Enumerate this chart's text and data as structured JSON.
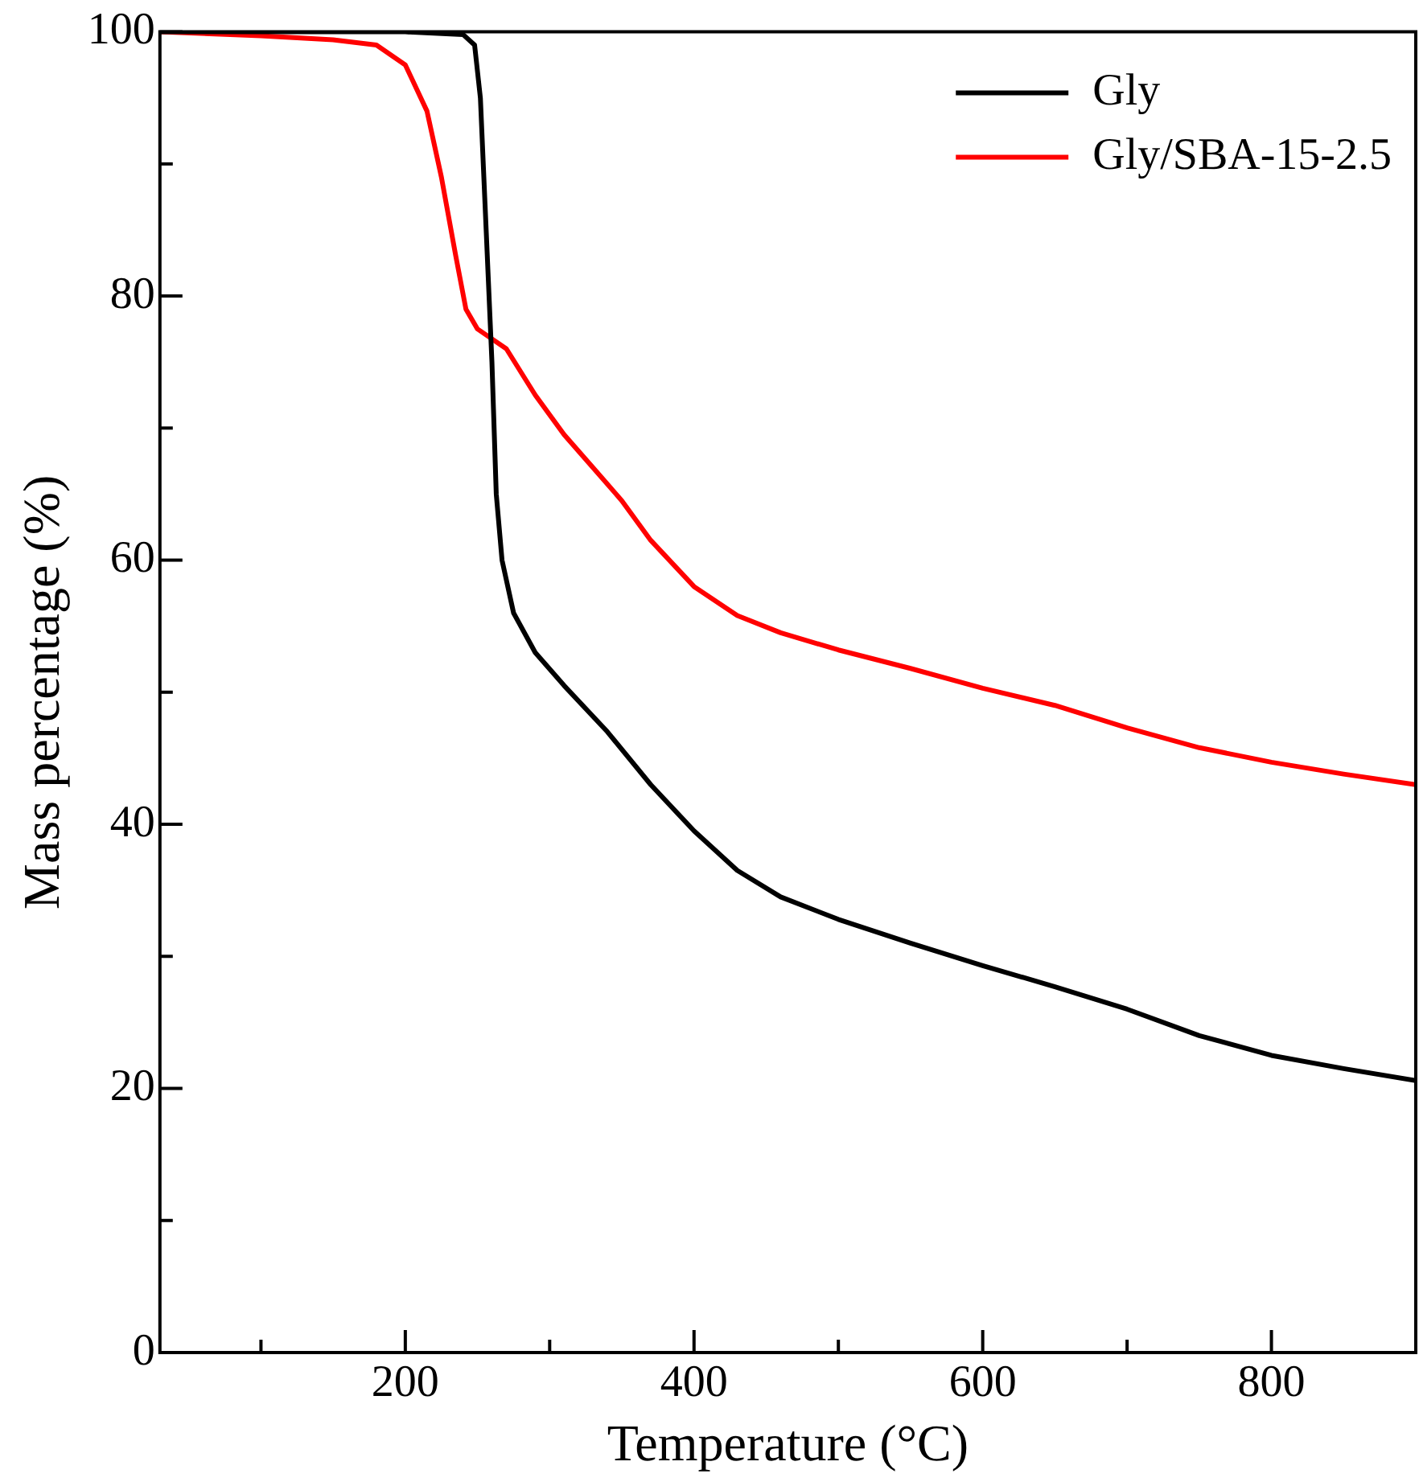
{
  "chart_data": {
    "type": "line",
    "xlabel": "Temperature (°C)",
    "ylabel": "Mass percentage (%)",
    "xlim": [
      30,
      900
    ],
    "xticks": [
      {
        "value": 100,
        "label": null
      },
      200,
      {
        "value": 300,
        "label": null
      },
      400,
      {
        "value": 500,
        "label": null
      },
      600,
      {
        "value": 700,
        "label": null
      },
      800
    ],
    "ylim": [
      0,
      100
    ],
    "yticks": [
      0,
      {
        "value": 10,
        "label": null
      },
      20,
      {
        "value": 30,
        "label": null
      },
      40,
      {
        "value": 50,
        "label": null
      },
      60,
      {
        "value": 70,
        "label": null
      },
      80,
      {
        "value": 90,
        "label": null
      },
      100
    ],
    "legend": "top right",
    "marker": "none",
    "line_style": "solid",
    "series": [
      {
        "name": "Gly",
        "color": "#000000",
        "x": [
          30,
          100,
          200,
          240,
          248,
          252,
          256,
          260,
          263,
          267,
          275,
          290,
          310,
          340,
          370,
          400,
          430,
          460,
          500,
          550,
          600,
          650,
          700,
          750,
          800,
          850,
          900
        ],
        "values": [
          100,
          100,
          100,
          99.8,
          99,
          95,
          85,
          75,
          65,
          60,
          56,
          53,
          50.5,
          47,
          43,
          39.5,
          36.5,
          34.5,
          32.8,
          31,
          29.3,
          27.7,
          26,
          24,
          22.5,
          21.5,
          20.6
        ]
      },
      {
        "name": "Gly/SBA-15-2.5",
        "color": "#ff0000",
        "x": [
          30,
          100,
          150,
          180,
          200,
          215,
          225,
          235,
          242,
          250,
          270,
          290,
          310,
          330,
          350,
          370,
          400,
          430,
          460,
          500,
          550,
          600,
          650,
          700,
          750,
          800,
          850,
          900
        ],
        "values": [
          100,
          99.7,
          99.4,
          99,
          97.5,
          94,
          89,
          83,
          79,
          77.5,
          76,
          72.5,
          69.5,
          67,
          64.5,
          61.5,
          58,
          55.8,
          54.5,
          53.2,
          51.8,
          50.3,
          49,
          47.3,
          45.8,
          44.7,
          43.8,
          43
        ]
      }
    ]
  }
}
